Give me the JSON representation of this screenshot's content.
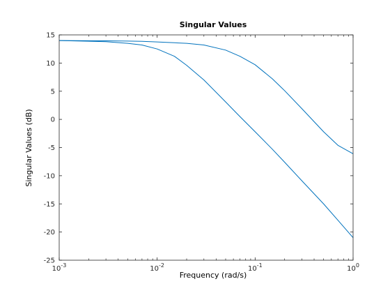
{
  "chart_data": {
    "type": "line",
    "title": "Singular Values",
    "xlabel": "Frequency (rad/s)",
    "ylabel": "Singular Values (dB)",
    "x_scale": "log",
    "xlim": [
      0.001,
      1
    ],
    "ylim": [
      -25,
      15
    ],
    "x_ticks": [
      {
        "value": 0.001,
        "base": "10",
        "exp": "-3"
      },
      {
        "value": 0.01,
        "base": "10",
        "exp": "-2"
      },
      {
        "value": 0.1,
        "base": "10",
        "exp": "-1"
      },
      {
        "value": 1,
        "base": "10",
        "exp": "0"
      }
    ],
    "y_ticks": [
      15,
      10,
      5,
      0,
      -5,
      -10,
      -15,
      -20,
      -25
    ],
    "y_tick_labels": [
      "15",
      "10",
      "5",
      "0",
      "-5",
      "-10",
      "-15",
      "-20",
      "-25"
    ],
    "grid": false,
    "line_color": "#0072BD",
    "series": [
      {
        "x": [
          0.001,
          0.003,
          0.005,
          0.007,
          0.01,
          0.015,
          0.02,
          0.03,
          0.05,
          0.07,
          0.1,
          0.15,
          0.2,
          0.3,
          0.5,
          0.7,
          1
        ],
        "values": [
          14,
          13.95,
          13.9,
          13.85,
          13.75,
          13.6,
          13.5,
          13.2,
          12.3,
          11.2,
          9.7,
          7.2,
          5.1,
          1.9,
          -2.2,
          -4.6,
          -6.1
        ]
      },
      {
        "x": [
          0.001,
          0.003,
          0.005,
          0.007,
          0.01,
          0.015,
          0.02,
          0.03,
          0.05,
          0.07,
          0.1,
          0.15,
          0.2,
          0.3,
          0.5,
          0.7,
          1
        ],
        "values": [
          14,
          13.8,
          13.5,
          13.2,
          12.5,
          11.2,
          9.6,
          7,
          3.1,
          0.5,
          -2.2,
          -5.3,
          -7.6,
          -10.9,
          -15,
          -17.9,
          -21
        ]
      }
    ]
  }
}
